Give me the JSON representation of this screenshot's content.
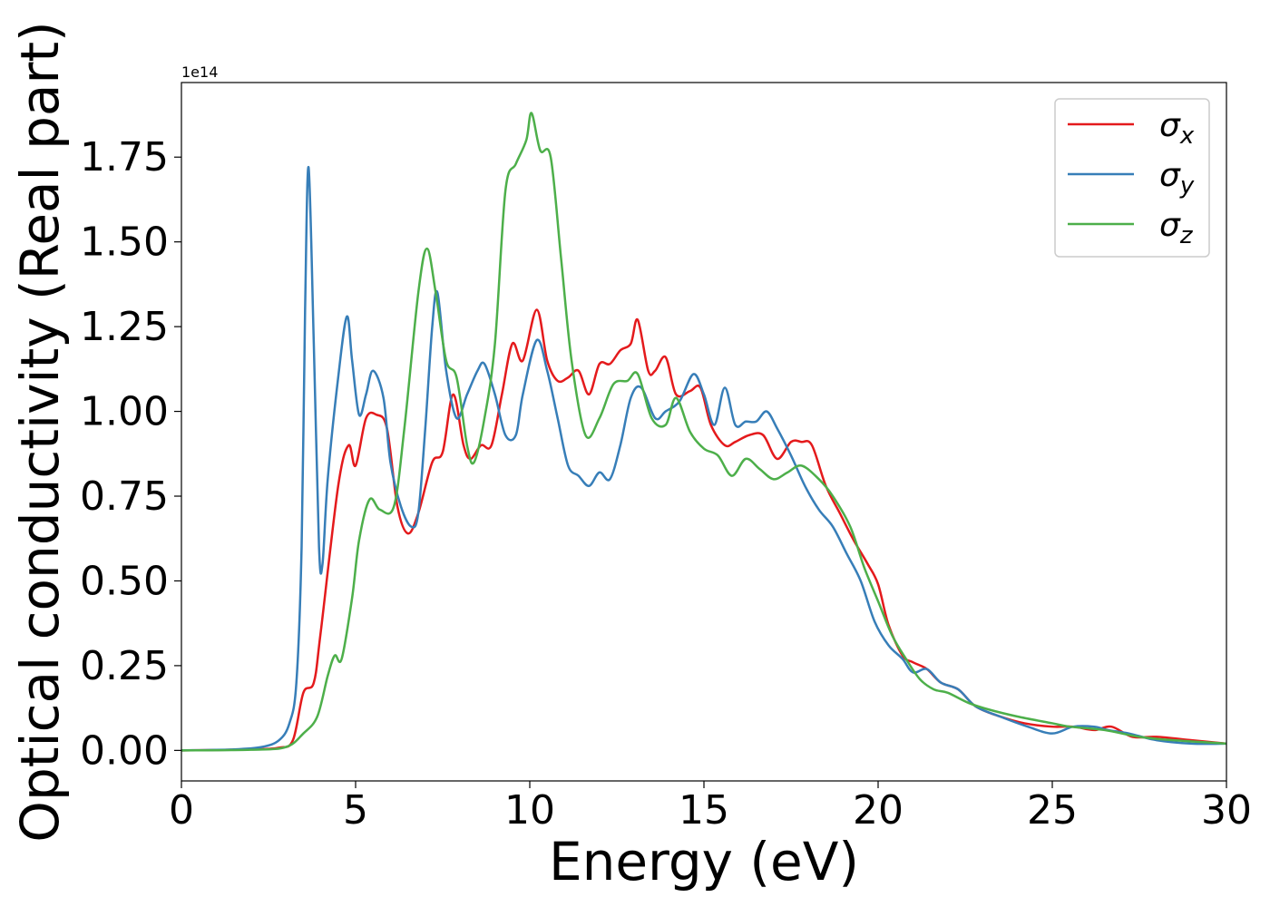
{
  "chart_data": {
    "type": "line",
    "title": "",
    "xlabel": "Energy (eV)",
    "ylabel": "Optical conductivity (Real part)",
    "y_multiplier": "1e14",
    "xlim": [
      0,
      30
    ],
    "ylim": [
      -0.09,
      1.97
    ],
    "x_ticks": [
      "0",
      "5",
      "10",
      "15",
      "20",
      "25",
      "30"
    ],
    "y_ticks": [
      "0.00",
      "0.25",
      "0.50",
      "0.75",
      "1.00",
      "1.25",
      "1.50",
      "1.75"
    ],
    "grid": false,
    "legend_position": "top-right",
    "series": [
      {
        "name": "σ_x",
        "color": "#e41a1c",
        "points": [
          [
            0,
            0
          ],
          [
            2,
            0.003
          ],
          [
            2.8,
            0.008
          ],
          [
            3.2,
            0.03
          ],
          [
            3.5,
            0.17
          ],
          [
            3.8,
            0.2
          ],
          [
            4,
            0.35
          ],
          [
            4.5,
            0.78
          ],
          [
            4.8,
            0.9
          ],
          [
            5,
            0.84
          ],
          [
            5.3,
            0.98
          ],
          [
            5.6,
            0.99
          ],
          [
            5.9,
            0.95
          ],
          [
            6.2,
            0.72
          ],
          [
            6.5,
            0.64
          ],
          [
            6.8,
            0.7
          ],
          [
            7.2,
            0.85
          ],
          [
            7.5,
            0.88
          ],
          [
            7.8,
            1.05
          ],
          [
            8.1,
            0.9
          ],
          [
            8.3,
            0.86
          ],
          [
            8.6,
            0.9
          ],
          [
            8.9,
            0.9
          ],
          [
            9.2,
            1.05
          ],
          [
            9.5,
            1.2
          ],
          [
            9.8,
            1.15
          ],
          [
            10.2,
            1.3
          ],
          [
            10.5,
            1.15
          ],
          [
            10.8,
            1.09
          ],
          [
            11.1,
            1.1
          ],
          [
            11.4,
            1.12
          ],
          [
            11.7,
            1.05
          ],
          [
            12,
            1.14
          ],
          [
            12.3,
            1.14
          ],
          [
            12.6,
            1.18
          ],
          [
            12.9,
            1.2
          ],
          [
            13.1,
            1.27
          ],
          [
            13.4,
            1.12
          ],
          [
            13.6,
            1.12
          ],
          [
            13.9,
            1.16
          ],
          [
            14.2,
            1.05
          ],
          [
            14.6,
            1.06
          ],
          [
            14.9,
            1.07
          ],
          [
            15.2,
            0.96
          ],
          [
            15.6,
            0.9
          ],
          [
            15.9,
            0.91
          ],
          [
            16.3,
            0.93
          ],
          [
            16.7,
            0.93
          ],
          [
            17.1,
            0.86
          ],
          [
            17.5,
            0.91
          ],
          [
            17.8,
            0.91
          ],
          [
            18.1,
            0.9
          ],
          [
            18.5,
            0.78
          ],
          [
            18.9,
            0.7
          ],
          [
            19.3,
            0.62
          ],
          [
            19.7,
            0.55
          ],
          [
            20,
            0.49
          ],
          [
            20.3,
            0.37
          ],
          [
            20.7,
            0.28
          ],
          [
            21,
            0.26
          ],
          [
            21.4,
            0.24
          ],
          [
            21.8,
            0.2
          ],
          [
            22.3,
            0.18
          ],
          [
            22.8,
            0.13
          ],
          [
            23.5,
            0.1
          ],
          [
            24.2,
            0.08
          ],
          [
            25,
            0.07
          ],
          [
            25.6,
            0.07
          ],
          [
            26.2,
            0.06
          ],
          [
            26.7,
            0.07
          ],
          [
            27.3,
            0.04
          ],
          [
            28,
            0.04
          ],
          [
            29,
            0.03
          ],
          [
            30,
            0.02
          ]
        ]
      },
      {
        "name": "σ_y",
        "color": "#377eb8",
        "points": [
          [
            0,
            0
          ],
          [
            1.5,
            0.003
          ],
          [
            2.3,
            0.01
          ],
          [
            2.8,
            0.03
          ],
          [
            3.1,
            0.08
          ],
          [
            3.3,
            0.2
          ],
          [
            3.45,
            0.6
          ],
          [
            3.55,
            1.3
          ],
          [
            3.65,
            1.72
          ],
          [
            3.8,
            1.2
          ],
          [
            3.95,
            0.6
          ],
          [
            4.05,
            0.55
          ],
          [
            4.2,
            0.8
          ],
          [
            4.5,
            1.1
          ],
          [
            4.75,
            1.28
          ],
          [
            4.9,
            1.15
          ],
          [
            5.1,
            0.99
          ],
          [
            5.3,
            1.05
          ],
          [
            5.5,
            1.12
          ],
          [
            5.8,
            1.04
          ],
          [
            6,
            0.85
          ],
          [
            6.3,
            0.72
          ],
          [
            6.6,
            0.66
          ],
          [
            6.8,
            0.7
          ],
          [
            7,
            0.95
          ],
          [
            7.2,
            1.25
          ],
          [
            7.35,
            1.35
          ],
          [
            7.6,
            1.12
          ],
          [
            7.9,
            0.98
          ],
          [
            8.2,
            1.05
          ],
          [
            8.5,
            1.12
          ],
          [
            8.7,
            1.14
          ],
          [
            9,
            1.05
          ],
          [
            9.3,
            0.93
          ],
          [
            9.6,
            0.93
          ],
          [
            9.8,
            1.05
          ],
          [
            10.2,
            1.21
          ],
          [
            10.5,
            1.12
          ],
          [
            10.8,
            0.98
          ],
          [
            11.1,
            0.84
          ],
          [
            11.4,
            0.81
          ],
          [
            11.7,
            0.78
          ],
          [
            12,
            0.82
          ],
          [
            12.3,
            0.8
          ],
          [
            12.6,
            0.9
          ],
          [
            12.9,
            1.04
          ],
          [
            13.2,
            1.07
          ],
          [
            13.6,
            0.98
          ],
          [
            13.9,
            1.0
          ],
          [
            14.3,
            1.03
          ],
          [
            14.7,
            1.11
          ],
          [
            15,
            1.05
          ],
          [
            15.3,
            0.96
          ],
          [
            15.6,
            1.07
          ],
          [
            15.9,
            0.96
          ],
          [
            16.2,
            0.97
          ],
          [
            16.5,
            0.97
          ],
          [
            16.8,
            1.0
          ],
          [
            17.1,
            0.95
          ],
          [
            17.5,
            0.87
          ],
          [
            17.9,
            0.78
          ],
          [
            18.3,
            0.71
          ],
          [
            18.7,
            0.66
          ],
          [
            19.1,
            0.58
          ],
          [
            19.5,
            0.5
          ],
          [
            19.9,
            0.38
          ],
          [
            20.3,
            0.31
          ],
          [
            20.7,
            0.27
          ],
          [
            21,
            0.23
          ],
          [
            21.4,
            0.24
          ],
          [
            21.8,
            0.2
          ],
          [
            22.3,
            0.18
          ],
          [
            22.8,
            0.13
          ],
          [
            23.5,
            0.1
          ],
          [
            24.3,
            0.07
          ],
          [
            25,
            0.05
          ],
          [
            25.6,
            0.07
          ],
          [
            26.2,
            0.07
          ],
          [
            26.6,
            0.06
          ],
          [
            27.2,
            0.05
          ],
          [
            28,
            0.03
          ],
          [
            29,
            0.02
          ],
          [
            30,
            0.02
          ]
        ]
      },
      {
        "name": "σ_z",
        "color": "#4daf4a",
        "points": [
          [
            0,
            0
          ],
          [
            2,
            0.002
          ],
          [
            3,
            0.01
          ],
          [
            3.5,
            0.05
          ],
          [
            3.9,
            0.1
          ],
          [
            4.2,
            0.22
          ],
          [
            4.4,
            0.28
          ],
          [
            4.6,
            0.27
          ],
          [
            4.9,
            0.45
          ],
          [
            5.1,
            0.62
          ],
          [
            5.4,
            0.74
          ],
          [
            5.7,
            0.71
          ],
          [
            6.1,
            0.72
          ],
          [
            6.4,
            0.95
          ],
          [
            6.8,
            1.35
          ],
          [
            7.05,
            1.48
          ],
          [
            7.3,
            1.35
          ],
          [
            7.6,
            1.15
          ],
          [
            7.9,
            1.1
          ],
          [
            8.2,
            0.9
          ],
          [
            8.4,
            0.85
          ],
          [
            8.7,
            0.98
          ],
          [
            9,
            1.2
          ],
          [
            9.3,
            1.65
          ],
          [
            9.6,
            1.73
          ],
          [
            9.9,
            1.8
          ],
          [
            10.05,
            1.88
          ],
          [
            10.3,
            1.77
          ],
          [
            10.6,
            1.75
          ],
          [
            10.9,
            1.45
          ],
          [
            11.2,
            1.15
          ],
          [
            11.6,
            0.93
          ],
          [
            12,
            0.98
          ],
          [
            12.4,
            1.08
          ],
          [
            12.8,
            1.09
          ],
          [
            13.1,
            1.11
          ],
          [
            13.5,
            0.98
          ],
          [
            13.9,
            0.96
          ],
          [
            14.2,
            1.04
          ],
          [
            14.6,
            0.94
          ],
          [
            15,
            0.89
          ],
          [
            15.4,
            0.87
          ],
          [
            15.8,
            0.81
          ],
          [
            16.2,
            0.86
          ],
          [
            16.6,
            0.83
          ],
          [
            17,
            0.8
          ],
          [
            17.4,
            0.82
          ],
          [
            17.8,
            0.84
          ],
          [
            18.3,
            0.8
          ],
          [
            18.7,
            0.75
          ],
          [
            19.2,
            0.66
          ],
          [
            19.6,
            0.54
          ],
          [
            20,
            0.44
          ],
          [
            20.4,
            0.34
          ],
          [
            20.8,
            0.27
          ],
          [
            21.2,
            0.21
          ],
          [
            21.6,
            0.18
          ],
          [
            22,
            0.17
          ],
          [
            22.6,
            0.14
          ],
          [
            23.2,
            0.12
          ],
          [
            24,
            0.1
          ],
          [
            25,
            0.08
          ],
          [
            25.5,
            0.07
          ],
          [
            26.5,
            0.06
          ],
          [
            27.5,
            0.04
          ],
          [
            28.5,
            0.03
          ],
          [
            30,
            0.02
          ]
        ]
      }
    ]
  }
}
